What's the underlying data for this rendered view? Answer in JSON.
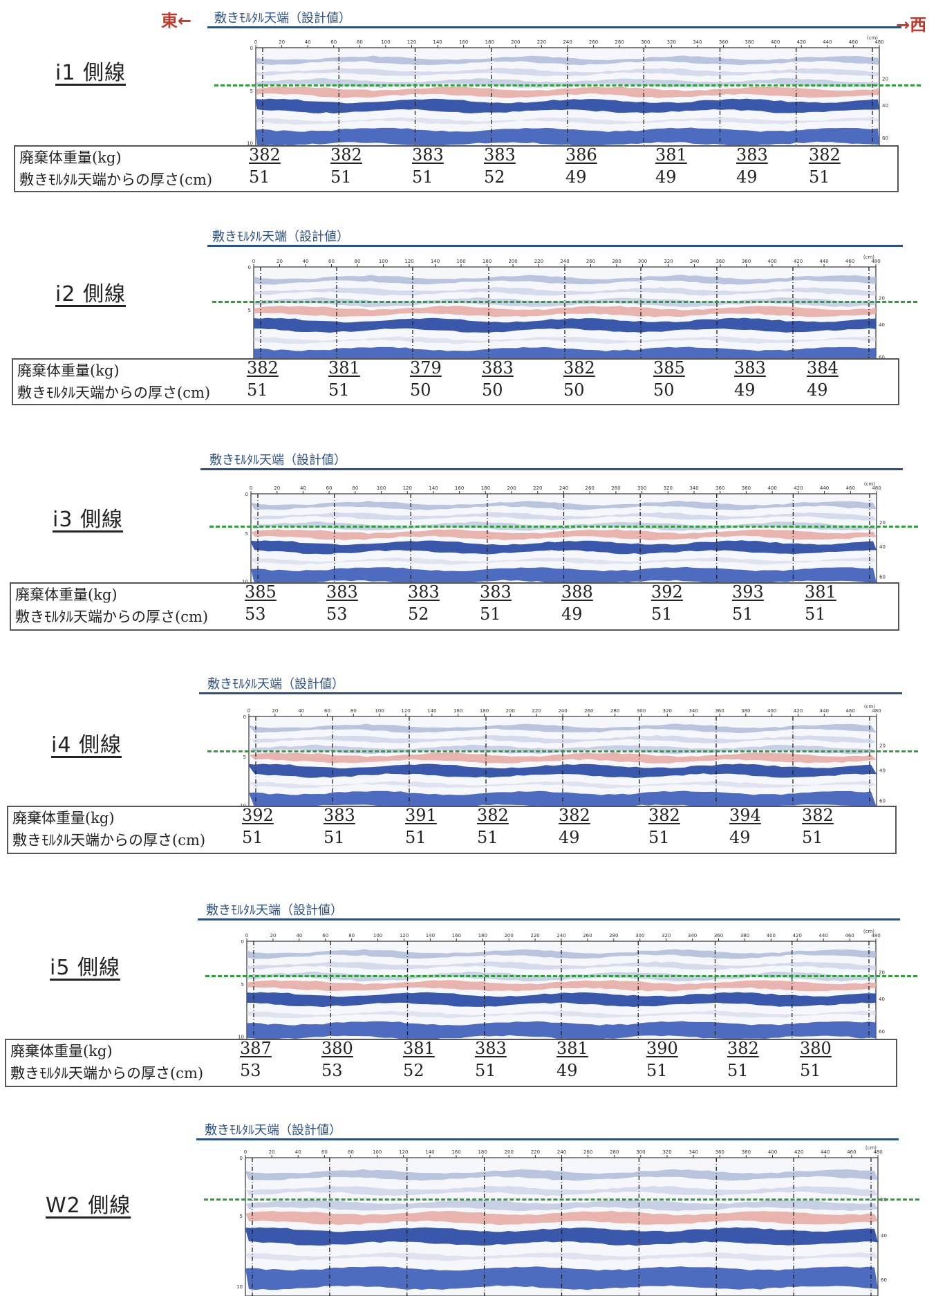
{
  "direction": {
    "east": "東←",
    "west": "→西"
  },
  "design_label": "敷きﾓﾙﾀﾙ天端（設計値）",
  "table_labels": {
    "weight": "廃棄体重量(kg)",
    "thickness": "敷きﾓﾙﾀﾙ天端からの厚さ(cm)"
  },
  "scale_ticks": [
    "0",
    "20",
    "40",
    "60",
    "80",
    "100",
    "120",
    "140",
    "160",
    "180",
    "200",
    "220",
    "240",
    "260",
    "280",
    "300",
    "320",
    "340",
    "360",
    "380",
    "400",
    "420",
    "440",
    "460",
    "480"
  ],
  "scale_unit": "(cm)",
  "depth_ticks_left": [
    "0",
    "5",
    "10"
  ],
  "depth_ticks_right": [
    "20",
    "40",
    "60"
  ],
  "sections": [
    {
      "title": "i1 側線",
      "weights": [
        "382",
        "382",
        "383",
        "383",
        "386",
        "381",
        "383",
        "382"
      ],
      "thickness": [
        "51",
        "51",
        "51",
        "52",
        "49",
        "49",
        "49",
        "51"
      ]
    },
    {
      "title": "i2 側線",
      "weights": [
        "382",
        "381",
        "379",
        "383",
        "382",
        "385",
        "383",
        "384"
      ],
      "thickness": [
        "51",
        "51",
        "50",
        "50",
        "50",
        "50",
        "49",
        "49"
      ]
    },
    {
      "title": "i3 側線",
      "weights": [
        "385",
        "383",
        "383",
        "383",
        "388",
        "392",
        "393",
        "381"
      ],
      "thickness": [
        "53",
        "53",
        "52",
        "51",
        "49",
        "51",
        "51",
        "51"
      ]
    },
    {
      "title": "i4 側線",
      "weights": [
        "392",
        "383",
        "391",
        "382",
        "382",
        "382",
        "394",
        "382"
      ],
      "thickness": [
        "51",
        "51",
        "51",
        "51",
        "49",
        "51",
        "49",
        "51"
      ]
    },
    {
      "title": "i5 側線",
      "weights": [
        "387",
        "380",
        "381",
        "383",
        "381",
        "390",
        "382",
        "380"
      ],
      "thickness": [
        "53",
        "53",
        "52",
        "51",
        "49",
        "51",
        "51",
        "51"
      ]
    },
    {
      "title": "W2 側線",
      "weights": [],
      "thickness": []
    }
  ]
}
